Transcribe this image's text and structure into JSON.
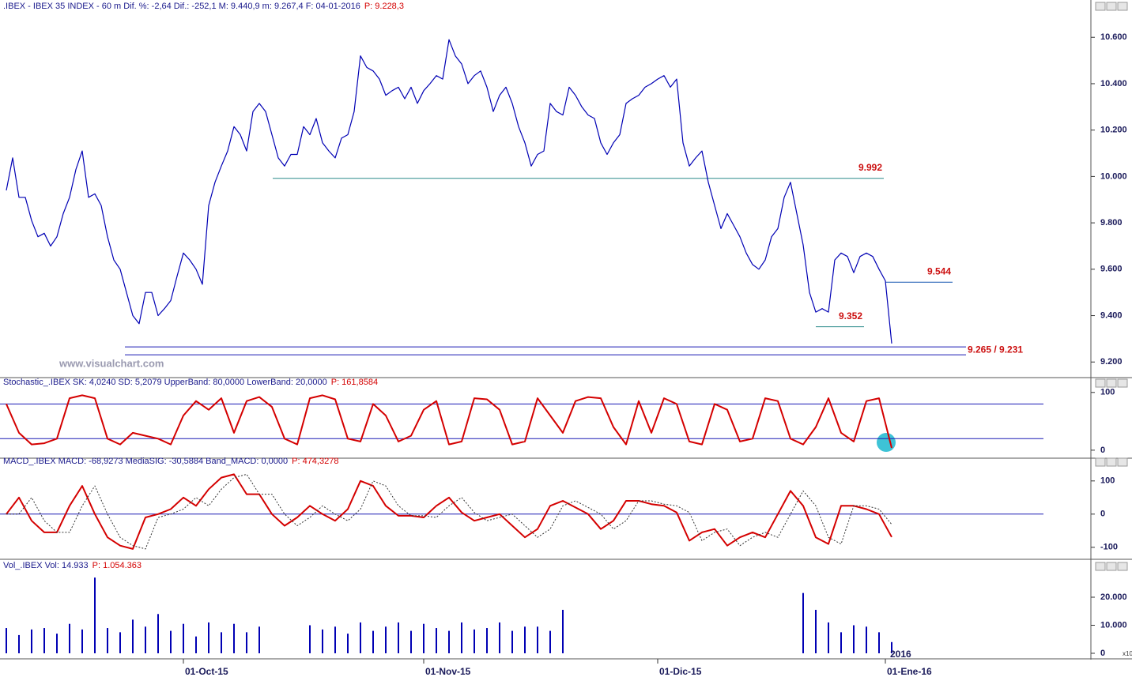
{
  "chart_data": [
    {
      "type": "line",
      "title": ".IBEX - IBEX 35 INDEX - 60 m Dif. %: -2,64 Dif.: -252,1 M: 9.440,9 m: 9.267,4 F: 04-01-2016",
      "title_p": "P: 9.228,3",
      "watermark": "www.visualchart.com",
      "xlim": [
        -1,
        171.5
      ],
      "ylim": [
        9160,
        10720
      ],
      "yticks": [
        {
          "value": 9200,
          "label": "9.200"
        },
        {
          "value": 9400,
          "label": "9.400"
        },
        {
          "value": 9600,
          "label": "9.600"
        },
        {
          "value": 9800,
          "label": "9.800"
        },
        {
          "value": 10000,
          "label": "10.000"
        },
        {
          "value": 10200,
          "label": "10.200"
        },
        {
          "value": 10400,
          "label": "10.400"
        },
        {
          "value": 10600,
          "label": "10.600"
        }
      ],
      "levels": [
        {
          "values": [
            9992
          ],
          "label": "9.992"
        },
        {
          "values": [
            9544
          ],
          "label": "9.544"
        },
        {
          "values": [
            9352
          ],
          "label": "9.352"
        },
        {
          "values": [
            9265,
            9231
          ],
          "label": "9.265 / 9.231"
        }
      ],
      "series": [
        {
          "color": "#0000b4",
          "values": [
            9940,
            10080,
            9910,
            9910,
            9810,
            9740,
            9755,
            9700,
            9740,
            9840,
            9910,
            10030,
            10110,
            9910,
            9925,
            9875,
            9740,
            9640,
            9600,
            9500,
            9400,
            9365,
            9500,
            9500,
            9400,
            9430,
            9465,
            9570,
            9670,
            9640,
            9600,
            9535,
            9875,
            9975,
            10045,
            10110,
            10215,
            10180,
            10110,
            10280,
            10315,
            10280,
            10180,
            10080,
            10045,
            10095,
            10095,
            10215,
            10180,
            10250,
            10145,
            10110,
            10080,
            10165,
            10180,
            10280,
            10520,
            10470,
            10455,
            10420,
            10350,
            10370,
            10385,
            10335,
            10385,
            10315,
            10370,
            10400,
            10435,
            10420,
            10590,
            10520,
            10485,
            10400,
            10435,
            10455,
            10385,
            10280,
            10350,
            10385,
            10315,
            10215,
            10145,
            10045,
            10095,
            10110,
            10315,
            10280,
            10265,
            10385,
            10350,
            10300,
            10265,
            10250,
            10145,
            10095,
            10145,
            10180,
            10315,
            10335,
            10350,
            10385,
            10400,
            10420,
            10435,
            10385,
            10420,
            10145,
            10045,
            10080,
            10110,
            9975,
            9875,
            9775,
            9840,
            9790,
            9740,
            9670,
            9620,
            9600,
            9640,
            9740,
            9775,
            9910,
            9975,
            9840,
            9705,
            9500,
            9415,
            9430,
            9415,
            9640,
            9670,
            9655,
            9585,
            9655,
            9670,
            9655,
            9600,
            9550,
            9280
          ]
        }
      ]
    },
    {
      "type": "line",
      "title": "Stochastic_.IBEX SK: 4,0240 SD: 5,2079 UpperBand: 80,0000 LowerBand: 20,0000",
      "title_p": "P: 161,8584",
      "xlim": [
        -0.5,
        85.75
      ],
      "ylim": [
        -7,
        112
      ],
      "yticks": [
        0,
        100
      ],
      "bands": [
        80,
        20
      ],
      "series": [
        {
          "color": "#d40000",
          "values": [
            80,
            30,
            10,
            12,
            20,
            90,
            95,
            90,
            20,
            10,
            30,
            25,
            20,
            10,
            60,
            85,
            70,
            90,
            30,
            85,
            92,
            75,
            20,
            10,
            90,
            95,
            88,
            20,
            15,
            80,
            60,
            15,
            25,
            70,
            85,
            10,
            15,
            90,
            88,
            70,
            10,
            15,
            90,
            60,
            30,
            85,
            92,
            90,
            40,
            10,
            85,
            30,
            90,
            80,
            15,
            10,
            80,
            70,
            15,
            20,
            90,
            85,
            20,
            10,
            40,
            90,
            30,
            15,
            85,
            90,
            4
          ]
        }
      ]
    },
    {
      "type": "line",
      "title": "MACD_.IBEX MACD: -68,9273 MediaSIG: -30,5884 Band_MACD: 0,0000",
      "title_p": "P: 474,3278",
      "xlim": [
        -0.5,
        85.75
      ],
      "ylim": [
        -129,
        140
      ],
      "yticks": [
        -100,
        0,
        100
      ],
      "bands": [
        0
      ],
      "series": [
        {
          "color": "#d40000",
          "values": [
            0,
            50,
            -20,
            -55,
            -55,
            25,
            85,
            0,
            -70,
            -95,
            -105,
            -10,
            0,
            15,
            50,
            25,
            75,
            110,
            120,
            60,
            60,
            0,
            -35,
            -10,
            25,
            0,
            -20,
            15,
            100,
            85,
            25,
            -5,
            -5,
            -10,
            25,
            50,
            5,
            -20,
            -10,
            0,
            -35,
            -70,
            -45,
            25,
            40,
            20,
            0,
            -45,
            -20,
            40,
            40,
            30,
            25,
            5,
            -80,
            -55,
            -45,
            -95,
            -70,
            -55,
            -70,
            0,
            70,
            25,
            -70,
            -90,
            25,
            25,
            15,
            0,
            -69
          ]
        },
        {
          "color": "#333333",
          "values": [
            0,
            0,
            50,
            -20,
            -55,
            -55,
            25,
            85,
            0,
            -70,
            -95,
            -105,
            -10,
            0,
            15,
            50,
            25,
            75,
            110,
            120,
            60,
            60,
            0,
            -35,
            -10,
            25,
            0,
            -20,
            15,
            100,
            85,
            25,
            -5,
            -5,
            -10,
            25,
            50,
            5,
            -20,
            -10,
            0,
            -35,
            -70,
            -45,
            25,
            40,
            20,
            0,
            -45,
            -20,
            40,
            40,
            30,
            25,
            5,
            -80,
            -55,
            -45,
            -95,
            -70,
            -55,
            -70,
            0,
            70,
            25,
            -70,
            -90,
            25,
            25,
            15,
            -31
          ]
        }
      ]
    },
    {
      "type": "bar",
      "title": "Vol_.IBEX Vol: 14.933",
      "title_p": "P: 1.054.363",
      "note": "2016",
      "axis_unit": "x10",
      "xlim": [
        -0.5,
        85.75
      ],
      "ylim": [
        -850,
        30140
      ],
      "yticks": [
        0,
        {
          "value": 10000,
          "label": "10.000"
        },
        {
          "value": 20000,
          "label": "20.000"
        }
      ],
      "xticks": [
        {
          "value": 14,
          "label": "01-Oct-15"
        },
        {
          "value": 33,
          "label": "01-Nov-15"
        },
        {
          "value": 51.5,
          "label": "01-Dic-15"
        },
        {
          "value": 69.5,
          "label": "01-Ene-16"
        }
      ],
      "series": [
        {
          "color": "#0000b4",
          "values": [
            9000,
            6500,
            8500,
            9000,
            7000,
            10500,
            8500,
            27000,
            9000,
            7500,
            12000,
            9500,
            14000,
            8000,
            10500,
            6000,
            11000,
            7500,
            10500,
            7500,
            9500,
            null,
            null,
            null,
            10000,
            8500,
            9500,
            7000,
            11000,
            8000,
            9500,
            11000,
            8000,
            10500,
            9000,
            8000,
            11000,
            8500,
            9000,
            11000,
            8000,
            9500,
            9500,
            8000,
            15500,
            null,
            null,
            null,
            null,
            null,
            null,
            null,
            null,
            null,
            null,
            null,
            null,
            null,
            null,
            null,
            null,
            null,
            null,
            21500,
            15500,
            11000,
            7500,
            10000,
            9500,
            7500,
            4000
          ]
        }
      ]
    }
  ]
}
